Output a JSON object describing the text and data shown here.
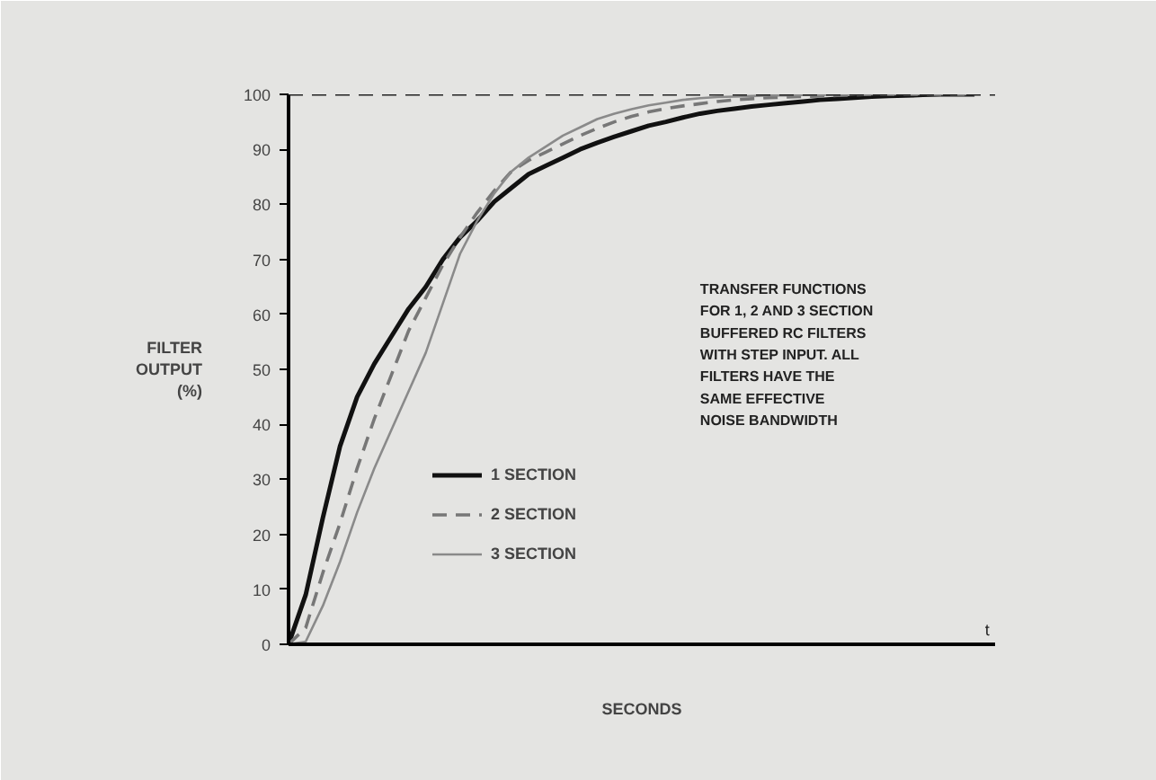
{
  "chart_data": {
    "type": "line",
    "xlabel": "SECONDS",
    "ylabel": "FILTER\nOUTPUT\n(%)",
    "categories": [
      null,
      null,
      null,
      null,
      null,
      null,
      null,
      null,
      null,
      null,
      null,
      null,
      null,
      null,
      null,
      null,
      null,
      null,
      null,
      null,
      null,
      null,
      null,
      null,
      null,
      null,
      null,
      null,
      null,
      null,
      null,
      null,
      null,
      null,
      null,
      null,
      null,
      null,
      null,
      null,
      null
    ],
    "series": [
      {
        "name": "1 SECTION",
        "color": "#111111",
        "line_style": "solid",
        "values": [
          0,
          9,
          23,
          36,
          45,
          51,
          56,
          61,
          65,
          70,
          74,
          77,
          80.5,
          83,
          85.5,
          87,
          88.5,
          90,
          91.2,
          92.3,
          93.3,
          94.3,
          95,
          95.8,
          96.5,
          97,
          97.4,
          97.8,
          98.1,
          98.4,
          98.7,
          99,
          99.2,
          99.4,
          99.6,
          99.7,
          99.8,
          99.9,
          100,
          100,
          100
        ]
      },
      {
        "name": "2 SECTION",
        "color": "#777777",
        "line_style": "dashed",
        "values": [
          0,
          3,
          13,
          22,
          32,
          41,
          49,
          57,
          63,
          69,
          74,
          78.5,
          82.5,
          86,
          88,
          89.5,
          91,
          92.5,
          93.8,
          95,
          96,
          96.8,
          97.4,
          97.9,
          98.3,
          98.7,
          99,
          99.2,
          99.4,
          99.5,
          99.6,
          99.7,
          99.8,
          99.9,
          100,
          100,
          100,
          100,
          100,
          100,
          100
        ]
      },
      {
        "name": "3 SECTION",
        "color": "#8a8a8a",
        "line_style": "solid",
        "values": [
          0,
          0.5,
          7,
          15,
          24,
          32,
          39,
          46,
          53,
          62,
          71,
          77,
          82,
          86,
          88.5,
          90.5,
          92.5,
          94,
          95.5,
          96.5,
          97.3,
          98,
          98.5,
          99,
          99.3,
          99.5,
          99.6,
          99.7,
          99.8,
          99.8,
          99.9,
          99.9,
          100,
          100,
          100,
          100,
          100,
          100,
          100,
          100,
          100
        ]
      }
    ],
    "ylim": [
      0,
      100
    ],
    "yticks": [
      0,
      10,
      20,
      30,
      40,
      50,
      60,
      70,
      80,
      90,
      100
    ],
    "legend": "bottom",
    "marker": "none",
    "ref_lines": [
      {
        "axis": "y",
        "value": 100,
        "color": "#222222",
        "line_style": "dashed"
      }
    ],
    "annotations": [
      "TRANSFER FUNCTIONS\nFOR 1, 2 AND 3 SECTION\nBUFFERED RC FILTERS\nWITH STEP INPUT.  ALL\nFILTERS HAVE THE\nSAME EFFECTIVE\nNOISE BANDWIDTH",
      "t"
    ]
  }
}
